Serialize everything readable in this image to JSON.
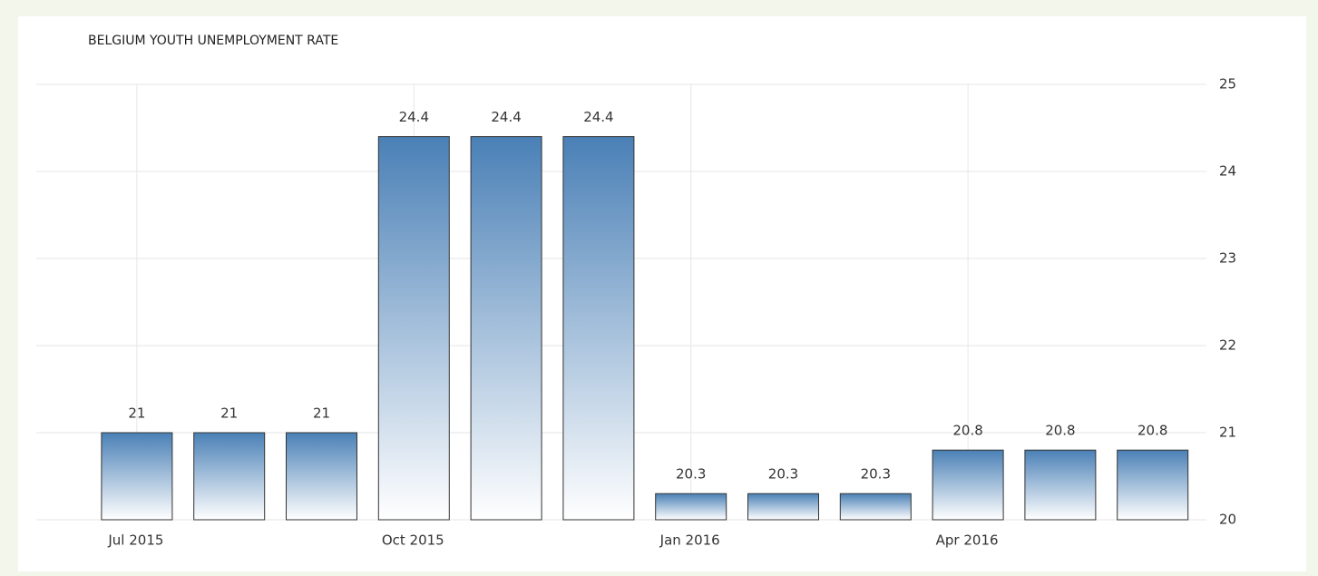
{
  "chart_data": {
    "type": "bar",
    "title": "BELGIUM YOUTH UNEMPLOYMENT RATE",
    "categories": [
      "Jul 2015",
      null,
      null,
      "Oct 2015",
      null,
      null,
      "Jan 2016",
      null,
      null,
      "Apr 2016",
      null,
      null
    ],
    "values": [
      21,
      21,
      21,
      24.4,
      24.4,
      24.4,
      20.3,
      20.3,
      20.3,
      20.8,
      20.8,
      20.8
    ],
    "color": "#4a80b6",
    "ylim": [
      20,
      25
    ],
    "yticks": [
      20,
      21,
      22,
      23,
      24,
      25
    ],
    "grid": true
  }
}
